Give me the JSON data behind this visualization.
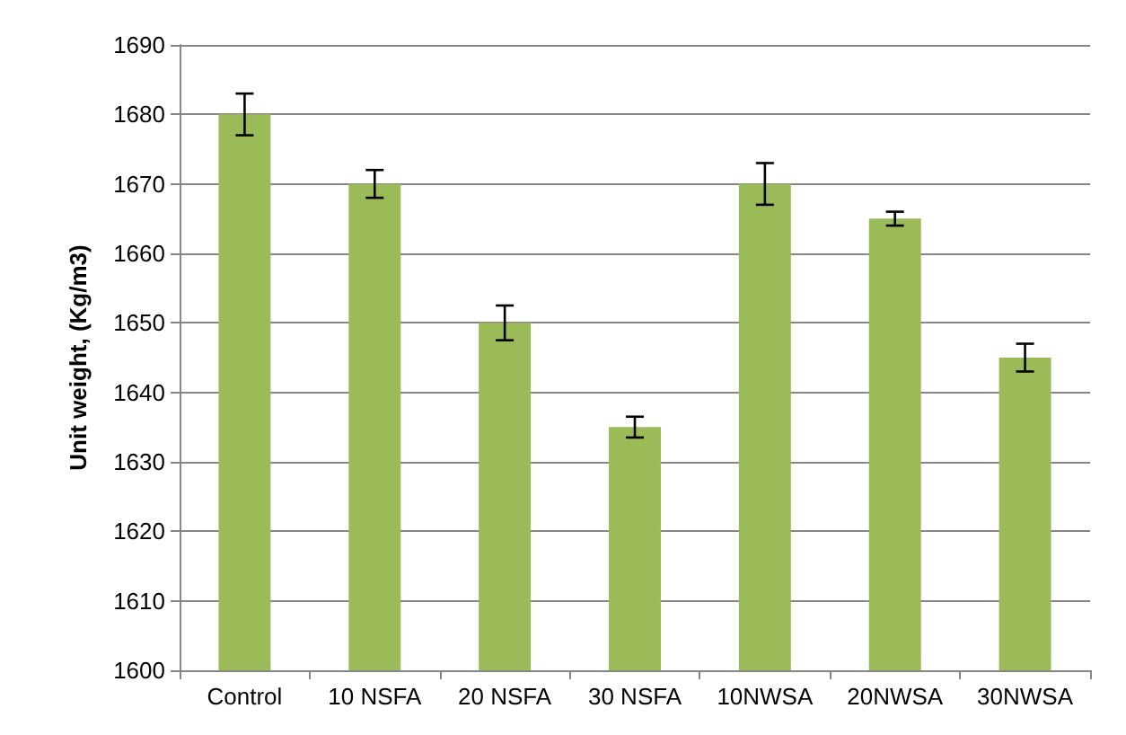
{
  "chart_data": {
    "type": "bar",
    "ylabel": "Unit weight, (Kg/m3)",
    "categories": [
      "Control",
      "10 NSFA",
      "20 NSFA",
      "30 NSFA",
      "10NWSA",
      "20NWSA",
      "30NWSA"
    ],
    "values": [
      1680,
      1670,
      1650,
      1635,
      1670,
      1665,
      1645
    ],
    "errors": [
      3,
      2,
      2.5,
      1.5,
      3,
      1,
      2
    ],
    "color": "#9bbb59",
    "ylim": [
      1600,
      1690
    ],
    "yticks": [
      1600,
      1610,
      1620,
      1630,
      1640,
      1650,
      1660,
      1670,
      1680,
      1690
    ],
    "grid": "y"
  }
}
